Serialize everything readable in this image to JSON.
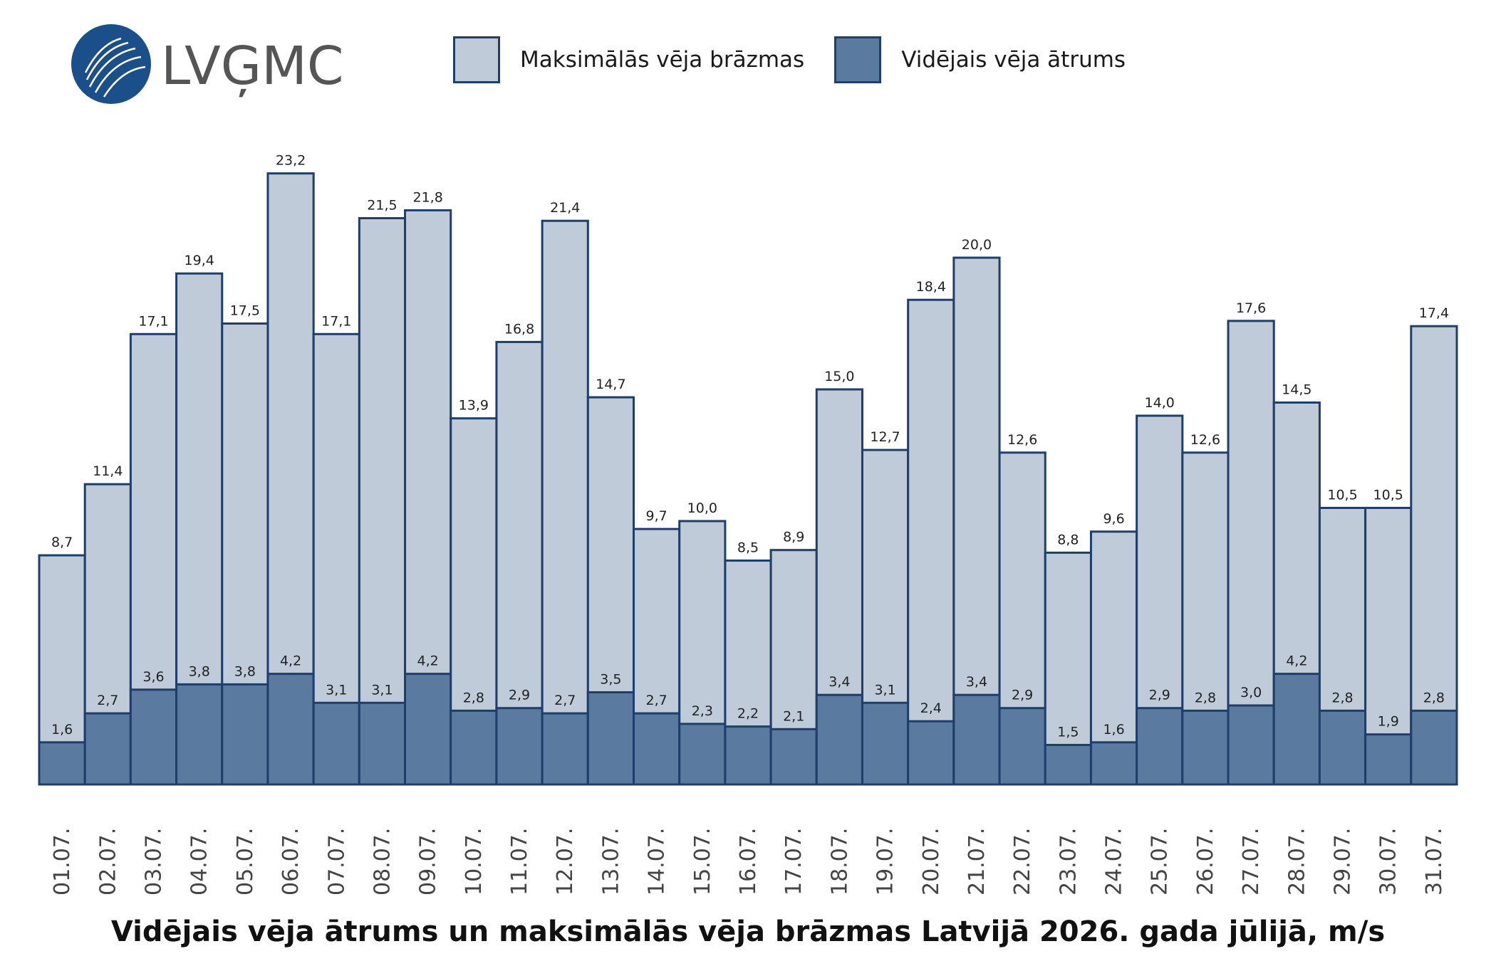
{
  "brand": {
    "name": "LVĢMC",
    "logo_color": "#1b4f8a",
    "text_color": "#555555"
  },
  "legend": {
    "items": [
      {
        "label": "Maksimālās vēja brāzmas",
        "color": "#bfcbd9"
      },
      {
        "label": "Vidējais vēja ātrums",
        "color": "#5a7aa0"
      }
    ]
  },
  "chart_data": {
    "type": "bar",
    "title": "Vidējais vēja ātrums un maksimālās vēja brāzmas Latvijā 2026. gada jūlijā, m/s",
    "categories": [
      "01.07.",
      "02.07.",
      "03.07.",
      "04.07.",
      "05.07.",
      "06.07.",
      "07.07.",
      "08.07.",
      "09.07.",
      "10.07.",
      "11.07.",
      "12.07.",
      "13.07.",
      "14.07.",
      "15.07.",
      "16.07.",
      "17.07.",
      "18.07.",
      "19.07.",
      "20.07.",
      "21.07.",
      "22.07.",
      "23.07.",
      "24.07.",
      "25.07.",
      "26.07.",
      "27.07.",
      "28.07.",
      "29.07.",
      "30.07.",
      "31.07."
    ],
    "series": [
      {
        "name": "Maksimālās vēja brāzmas",
        "values": [
          8.7,
          11.4,
          17.1,
          19.4,
          17.5,
          23.2,
          17.1,
          21.5,
          21.8,
          13.9,
          16.8,
          21.4,
          14.7,
          9.7,
          10.0,
          8.5,
          8.9,
          15.0,
          12.7,
          18.4,
          20.0,
          12.6,
          8.8,
          9.6,
          14.0,
          12.6,
          17.6,
          14.5,
          10.5,
          10.5,
          17.4
        ],
        "labels": [
          "8,7",
          "11,4",
          "17,1",
          "19,4",
          "17,5",
          "23,2",
          "17,1",
          "21,5",
          "21,8",
          "13,9",
          "16,8",
          "21,4",
          "14,7",
          "9,7",
          "10,0",
          "8,5",
          "8,9",
          "15,0",
          "12,7",
          "18,4",
          "20,0",
          "12,6",
          "8,8",
          "9,6",
          "14,0",
          "12,6",
          "17,6",
          "14,5",
          "10,5",
          "10,5",
          "17,4"
        ],
        "color": "#bfcbd9"
      },
      {
        "name": "Vidējais vēja ātrums",
        "values": [
          1.6,
          2.7,
          3.6,
          3.8,
          3.8,
          4.2,
          3.1,
          3.1,
          4.2,
          2.8,
          2.9,
          2.7,
          3.5,
          2.7,
          2.3,
          2.2,
          2.1,
          3.4,
          3.1,
          2.4,
          3.4,
          2.9,
          1.5,
          1.6,
          2.9,
          2.8,
          3.0,
          4.2,
          2.8,
          1.9,
          2.8
        ],
        "labels": [
          "1,6",
          "2,7",
          "3,6",
          "3,8",
          "3,8",
          "4,2",
          "3,1",
          "3,1",
          "4,2",
          "2,8",
          "2,9",
          "2,7",
          "3,5",
          "2,7",
          "2,3",
          "2,2",
          "2,1",
          "3,4",
          "3,1",
          "2,4",
          "3,4",
          "2,9",
          "1,5",
          "1,6",
          "2,9",
          "2,8",
          "3,0",
          "4,2",
          "2,8",
          "1,9",
          "2,8"
        ],
        "color": "#5a7aa0"
      }
    ],
    "overlap": true,
    "ylim": [
      0,
      24
    ],
    "grid": false,
    "legend_position": "top-center",
    "border_color": "#1f3f6b"
  }
}
